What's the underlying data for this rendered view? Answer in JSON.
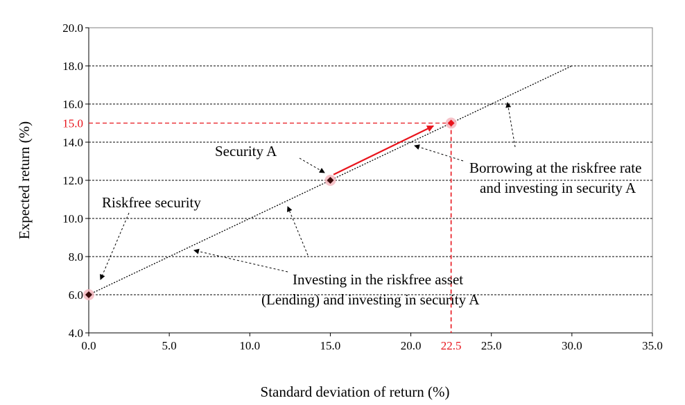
{
  "chart_data": {
    "type": "line",
    "xlabel": "Standard deviation of return (%)",
    "ylabel": "Expected return (%)",
    "xlim": [
      0,
      35
    ],
    "ylim": [
      4,
      20
    ],
    "x_ticks": [
      "0.0",
      "5.0",
      "10.0",
      "15.0",
      "20.0",
      "25.0",
      "30.0",
      "35.0"
    ],
    "y_ticks": [
      "4.0",
      "6.0",
      "8.0",
      "10.0",
      "12.0",
      "14.0",
      "16.0",
      "18.0",
      "20.0"
    ],
    "grid": "horizontal dashed",
    "series": [
      {
        "x": [
          0,
          30
        ],
        "y": [
          6,
          18
        ],
        "style": "dotted",
        "color": "#000000"
      }
    ],
    "points": [
      {
        "x": 0,
        "y": 6,
        "color": "#3a0a0a",
        "halo": "#f4b8c0"
      },
      {
        "x": 15,
        "y": 12,
        "color": "#3a0a0a",
        "halo": "#f4b8c0"
      },
      {
        "x": 22.5,
        "y": 15,
        "color": "#e8141c",
        "halo": "#f4b8c0"
      }
    ],
    "highlight": {
      "x": 22.5,
      "y": 15,
      "x_label": "22.5",
      "y_label": "15.0",
      "color": "#e8141c"
    },
    "red_arrow": {
      "from": [
        15.2,
        12.3
      ],
      "to": [
        21.4,
        14.85
      ],
      "color": "#e8141c"
    },
    "annotations": {
      "security_a": "Security A",
      "riskfree": "Riskfree security",
      "borrowing_line1": "Borrowing at the riskfree rate",
      "borrowing_line2": "and investing in security A",
      "lending_line1": "Investing in the riskfree asset",
      "lending_line2": "(Lending) and investing in security A"
    }
  }
}
